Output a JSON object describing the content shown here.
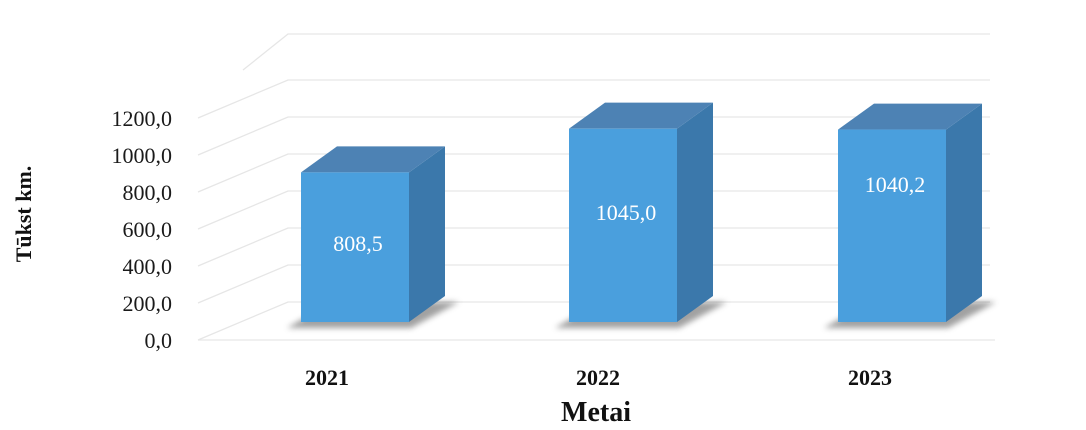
{
  "chart_data": {
    "type": "bar",
    "categories": [
      "2021",
      "2022",
      "2023"
    ],
    "values": [
      808.5,
      1045.0,
      1040.2
    ],
    "data_labels": [
      "808,5",
      "1045,0",
      "1040,2"
    ],
    "title": "",
    "xlabel": "Metai",
    "ylabel": "Tūkst km.",
    "ylim": [
      0,
      1200
    ],
    "yticks": [
      "0,0",
      "200,0",
      "400,0",
      "600,0",
      "800,0",
      "1000,0",
      "1200,0"
    ],
    "grid": true,
    "legend": "none",
    "style": "3d-column",
    "colors": {
      "front": "#4a9fdd",
      "top": "#4d82b4",
      "side": "#3b78ab"
    }
  }
}
